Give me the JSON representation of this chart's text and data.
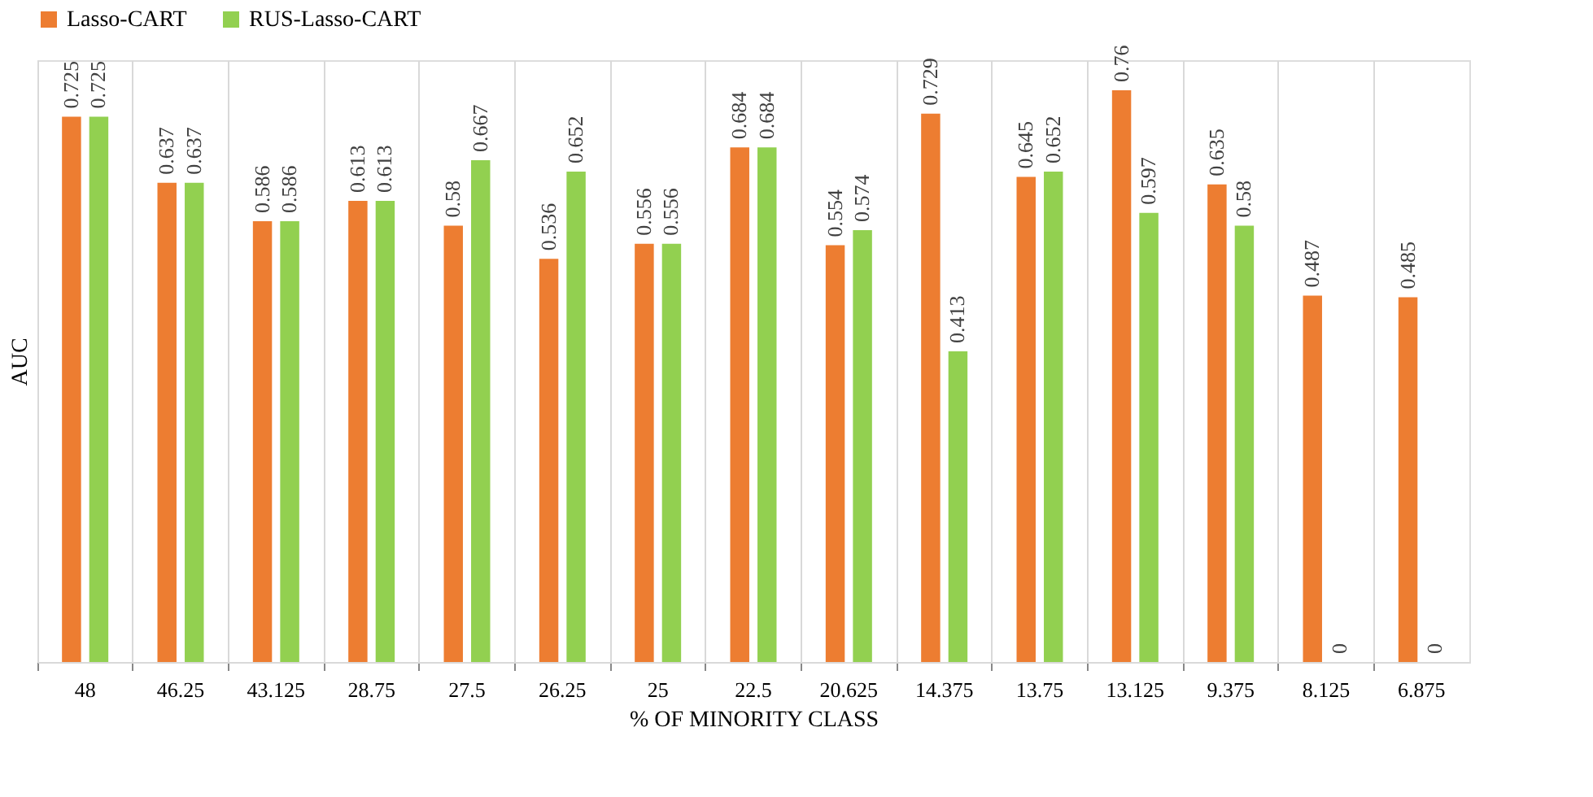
{
  "chart_data": {
    "type": "bar",
    "xlabel": "% OF MINORITY CLASS",
    "ylabel": "AUC",
    "categories": [
      "48",
      "46.25",
      "43.125",
      "28.75",
      "27.5",
      "26.25",
      "25",
      "22.5",
      "20.625",
      "14.375",
      "13.75",
      "13.125",
      "9.375",
      "8.125",
      "6.875"
    ],
    "series": [
      {
        "name": "Lasso-CART",
        "color": "#ed7d31",
        "values": [
          0.725,
          0.637,
          0.586,
          0.613,
          0.58,
          0.536,
          0.556,
          0.684,
          0.554,
          0.729,
          0.645,
          0.76,
          0.635,
          0.487,
          0.485
        ]
      },
      {
        "name": "RUS-Lasso-CART",
        "color": "#92d050",
        "values": [
          0.725,
          0.637,
          0.586,
          0.613,
          0.667,
          0.652,
          0.556,
          0.684,
          0.574,
          0.413,
          0.652,
          0.597,
          0.58,
          0,
          0
        ]
      }
    ],
    "ylim": [
      0,
      0.8
    ],
    "tick_labels": "x",
    "grid": "x",
    "legend": "top",
    "data_labels": true
  }
}
